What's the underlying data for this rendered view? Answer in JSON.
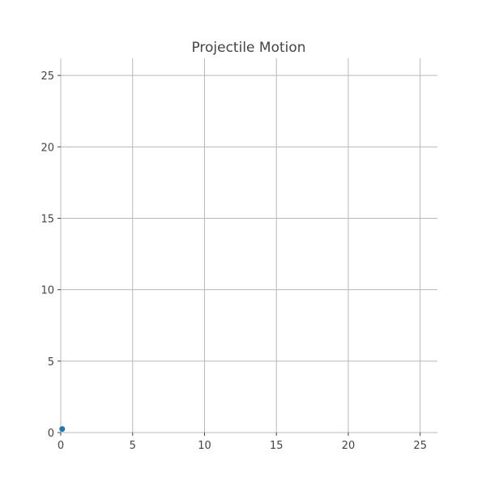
{
  "chart_data": {
    "type": "scatter",
    "title": "Projectile Motion",
    "xlabel": "",
    "ylabel": "",
    "xlim": [
      0,
      26.2
    ],
    "ylim": [
      0,
      26.2
    ],
    "x_ticks": [
      0,
      5,
      10,
      15,
      20,
      25
    ],
    "y_ticks": [
      0,
      5,
      10,
      15,
      20,
      25
    ],
    "grid": true,
    "legend": "none",
    "series": [
      {
        "color": "#1f77b4",
        "points": [
          {
            "x": 0.1,
            "y": 0.25
          }
        ]
      }
    ]
  }
}
